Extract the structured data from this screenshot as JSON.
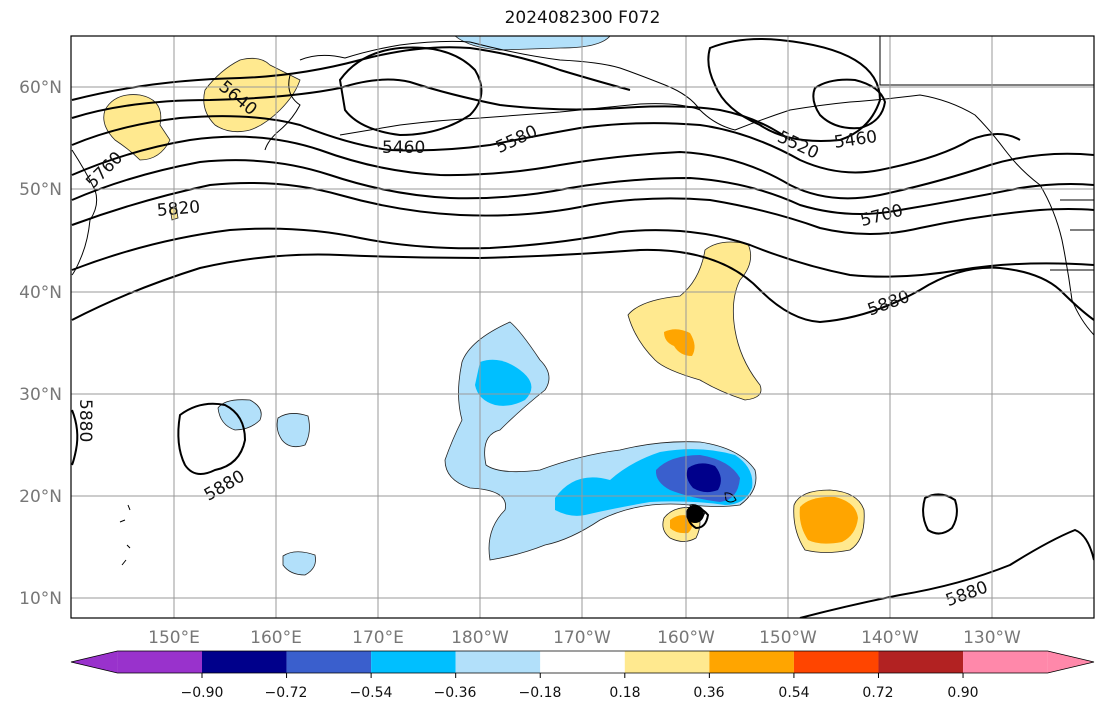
{
  "title": "2024082300 F072",
  "lon_labels": [
    "150°E",
    "160°E",
    "170°E",
    "180°W",
    "170°W",
    "160°W",
    "150°W",
    "140°W",
    "130°W"
  ],
  "lat_labels": [
    "60°N",
    "50°N",
    "40°N",
    "30°N",
    "20°N",
    "10°N"
  ],
  "contour_labels": [
    "5640",
    "5460",
    "5580",
    "5520",
    "5460",
    "5760",
    "5820",
    "5700",
    "5880",
    "5880",
    "5880",
    "5880"
  ],
  "colorbar": {
    "ticks": [
      "−0.90",
      "−0.72",
      "−0.54",
      "−0.36",
      "−0.18",
      "0.18",
      "0.36",
      "0.54",
      "0.72",
      "0.90"
    ],
    "colors": [
      "#9932cc",
      "#00008b",
      "#3a5fcd",
      "#00bfff",
      "#b2e0fa",
      "#ffffff",
      "#ffe98f",
      "#ffa500",
      "#ff4500",
      "#b22222",
      "#ff88aa",
      "#ff88aa"
    ]
  }
}
